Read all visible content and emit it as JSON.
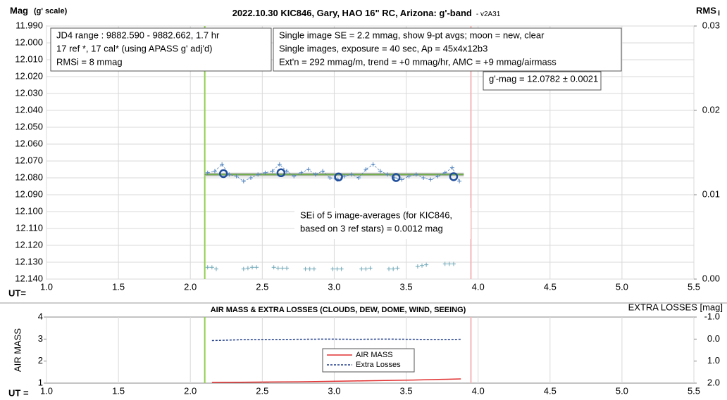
{
  "chart_data": [
    {
      "type": "scatter",
      "title": "2022.10.30 KIC846, Gary, HAO 16\" RC, Arizona: g'-band",
      "title_suffix": "- v2A31",
      "y_label": "Mag",
      "y_label_sub": "(g' scale)",
      "y2_label": "RMS",
      "y2_label_sub": "i",
      "x_label": "UT=",
      "xlim": [
        1.0,
        5.5
      ],
      "xticks": [
        {
          "value": 1,
          "label": "1.0"
        },
        1.5,
        {
          "value": 2,
          "label": "2.0"
        },
        2.5,
        {
          "value": 3,
          "label": "3.0"
        },
        3.5,
        {
          "value": 4,
          "label": "4.0"
        },
        4.5,
        {
          "value": 5,
          "label": "5.0"
        },
        5.5
      ],
      "ylim": [
        11.99,
        12.14
      ],
      "y_inverted": true,
      "yticks": [
        {
          "value": 11.99,
          "label": "11.990"
        },
        {
          "value": 12.0,
          "label": "12.000"
        },
        {
          "value": 12.01,
          "label": "12.010"
        },
        {
          "value": 12.02,
          "label": "12.020"
        },
        {
          "value": 12.03,
          "label": "12.030"
        },
        {
          "value": 12.04,
          "label": "12.040"
        },
        {
          "value": 12.05,
          "label": "12.050"
        },
        {
          "value": 12.06,
          "label": "12.060"
        },
        {
          "value": 12.07,
          "label": "12.070"
        },
        {
          "value": 12.08,
          "label": "12.080"
        },
        {
          "value": 12.09,
          "label": "12.090"
        },
        {
          "value": 12.1,
          "label": "12.100"
        },
        {
          "value": 12.11,
          "label": "12.110"
        },
        {
          "value": 12.12,
          "label": "12.120"
        },
        {
          "value": 12.13,
          "label": "12.130"
        },
        {
          "value": 12.14,
          "label": "12.140"
        }
      ],
      "y2lim": [
        0,
        0.03
      ],
      "y2ticks": [
        {
          "value": 0.03,
          "label": "0.03"
        },
        {
          "value": 0.02,
          "label": "0.02"
        },
        {
          "value": 0.01,
          "label": "0.01"
        },
        {
          "value": 0,
          "label": "0.00"
        }
      ],
      "grid": "both",
      "vlines": [
        {
          "x": 2.1,
          "color": "#92d050"
        },
        {
          "x": 3.95,
          "color": "#f4b6b6"
        }
      ],
      "hline": {
        "y": 12.078,
        "x": [
          2.1,
          3.9
        ],
        "color": "#70ad47"
      },
      "series": [
        {
          "color": "#4f81bd",
          "marker": "plus",
          "dash": true,
          "x": [
            2.12,
            2.17,
            2.22,
            2.27,
            2.32,
            2.37,
            2.42,
            2.47,
            2.52,
            2.57,
            2.62,
            2.67,
            2.72,
            2.77,
            2.82,
            2.87,
            2.92,
            2.97,
            3.02,
            3.07,
            3.12,
            3.17,
            3.22,
            3.27,
            3.32,
            3.37,
            3.42,
            3.47,
            3.52,
            3.57,
            3.62,
            3.67,
            3.72,
            3.77,
            3.82,
            3.87
          ],
          "values": [
            12.077,
            12.076,
            12.072,
            12.078,
            12.079,
            12.082,
            12.08,
            12.078,
            12.077,
            12.076,
            12.072,
            12.076,
            12.079,
            12.077,
            12.075,
            12.078,
            12.076,
            12.08,
            12.081,
            12.079,
            12.078,
            12.08,
            12.075,
            12.072,
            12.076,
            12.078,
            12.08,
            12.081,
            12.079,
            12.078,
            12.08,
            12.081,
            12.079,
            12.077,
            12.074,
            12.082
          ]
        },
        {
          "color": "#1f4e9c",
          "marker": "circle",
          "x": [
            2.23,
            2.63,
            3.03,
            3.43,
            3.83
          ],
          "values": [
            12.0775,
            12.077,
            12.0795,
            12.0798,
            12.0793
          ]
        },
        {
          "color": "#6fa8b8",
          "marker": "plus",
          "axis": "y2",
          "x": [
            2.12,
            2.15,
            2.18,
            2.37,
            2.4,
            2.43,
            2.46,
            2.58,
            2.61,
            2.64,
            2.67,
            2.8,
            2.83,
            2.86,
            2.99,
            3.02,
            3.05,
            3.19,
            3.22,
            3.25,
            3.38,
            3.41,
            3.44,
            3.58,
            3.61,
            3.64,
            3.77,
            3.8,
            3.83
          ],
          "values": [
            0.0014,
            0.0014,
            0.0012,
            0.0012,
            0.0013,
            0.0014,
            0.0014,
            0.0014,
            0.0013,
            0.0013,
            0.0013,
            0.0012,
            0.0012,
            0.0012,
            0.0012,
            0.0012,
            0.0012,
            0.0012,
            0.0012,
            0.0013,
            0.0012,
            0.0012,
            0.0013,
            0.0015,
            0.0016,
            0.0017,
            0.0018,
            0.0018,
            0.0018
          ]
        }
      ],
      "annotations": [
        {
          "lines": [
            "JD4 range : 9882.590 - 9882.662,  1.7 hr",
            "17 ref *, 17 cal* (using APASS g' adj'd)",
            "RMSi = 8 mmag"
          ],
          "border": true
        },
        {
          "lines": [
            "Single image SE = 2.2 mmag, show  9-pt avgs; moon = new, clear",
            "Single images, exposure = 40 sec, Ap = 45x4x12b3",
            "Ext'n = 292 mmag/m, trend = +0 mmag/hr, AMC = +9 mmag/airmass"
          ],
          "border": true
        },
        {
          "lines": [
            "g'-mag = 12.0782 ± 0.0021"
          ],
          "border": true
        },
        {
          "lines": [
            "SEi of 5 image-averages (for KIC846,",
            "based on 3 ref stars) = 0.0012 mag"
          ],
          "border": false
        }
      ]
    },
    {
      "type": "line",
      "title": "AIR MASS & EXTRA LOSSES (CLOUDS, DEW, DOME, WIND, SEEING)",
      "y_label": "AIR MASS",
      "y2_label": "EXTRA LOSSES [mag]",
      "x_label": "UT =",
      "xlim": [
        1.0,
        5.5
      ],
      "xticks": [
        {
          "value": 1,
          "label": "1.0"
        },
        1.5,
        {
          "value": 2,
          "label": "2.0"
        },
        2.5,
        {
          "value": 3,
          "label": "3.0"
        },
        3.5,
        {
          "value": 4,
          "label": "4.0"
        },
        4.5,
        {
          "value": 5,
          "label": "5.0"
        },
        5.5
      ],
      "ylim": [
        1,
        4
      ],
      "yticks": [
        1,
        2,
        3,
        4
      ],
      "y2lim": [
        -1,
        2
      ],
      "y2_inverted": true,
      "y2ticks": [
        {
          "value": -1,
          "label": "-1.0"
        },
        {
          "value": 0,
          "label": "0.0"
        },
        {
          "value": 1,
          "label": "1.0"
        },
        {
          "value": 2,
          "label": "2.0"
        }
      ],
      "grid": "x",
      "legend": true,
      "vlines": [
        {
          "x": 2.1,
          "color": "#92d050"
        },
        {
          "x": 3.95,
          "color": "#f4b6b6"
        }
      ],
      "series": [
        {
          "name": "AIR MASS",
          "color": "#e03030",
          "x": [
            2.15,
            2.35,
            2.55,
            2.75,
            2.95,
            3.15,
            3.35,
            3.55,
            3.75,
            3.88
          ],
          "values": [
            1.03,
            1.04,
            1.05,
            1.06,
            1.08,
            1.1,
            1.12,
            1.14,
            1.17,
            1.19
          ]
        },
        {
          "name": "Extra Losses",
          "color": "#1f3c88",
          "axis": "y2",
          "dash": true,
          "x": [
            2.15,
            2.35,
            2.55,
            2.75,
            2.95,
            3.15,
            3.35,
            3.55,
            3.75,
            3.88
          ],
          "values": [
            0.07,
            0.03,
            0.02,
            0.01,
            0.0,
            0.01,
            0.0,
            0.01,
            0.02,
            0.01
          ]
        }
      ]
    }
  ]
}
